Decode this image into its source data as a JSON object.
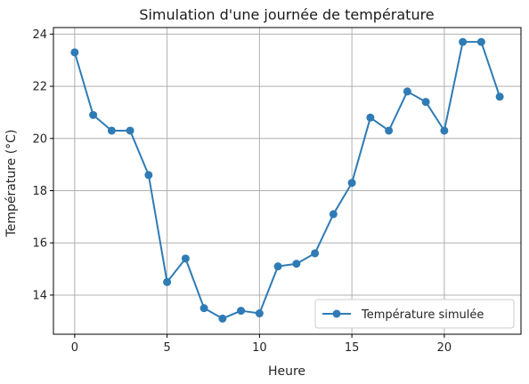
{
  "chart_data": {
    "type": "line",
    "title": "Simulation d'une journée de température",
    "xlabel": "Heure",
    "ylabel": "Température (°C)",
    "xlim": [
      -1.15,
      24.15
    ],
    "ylim": [
      12.5,
      24.25
    ],
    "xticks": [
      0,
      5,
      10,
      15,
      20
    ],
    "yticks": [
      14,
      16,
      18,
      20,
      22,
      24
    ],
    "grid": true,
    "legend_position": "bottom-right",
    "series": [
      {
        "name": "Température simulée",
        "color": "#2f7bb5",
        "marker": "circle",
        "x": [
          0,
          1,
          2,
          3,
          4,
          5,
          6,
          7,
          8,
          9,
          10,
          11,
          12,
          13,
          14,
          15,
          16,
          17,
          18,
          19,
          20,
          21,
          22,
          23
        ],
        "y": [
          23.3,
          20.9,
          20.3,
          20.3,
          18.6,
          14.5,
          15.4,
          13.5,
          13.1,
          13.4,
          13.3,
          15.1,
          15.2,
          15.6,
          17.1,
          18.3,
          20.8,
          20.3,
          21.8,
          21.4,
          20.3,
          23.7,
          23.7,
          21.6
        ]
      }
    ]
  }
}
